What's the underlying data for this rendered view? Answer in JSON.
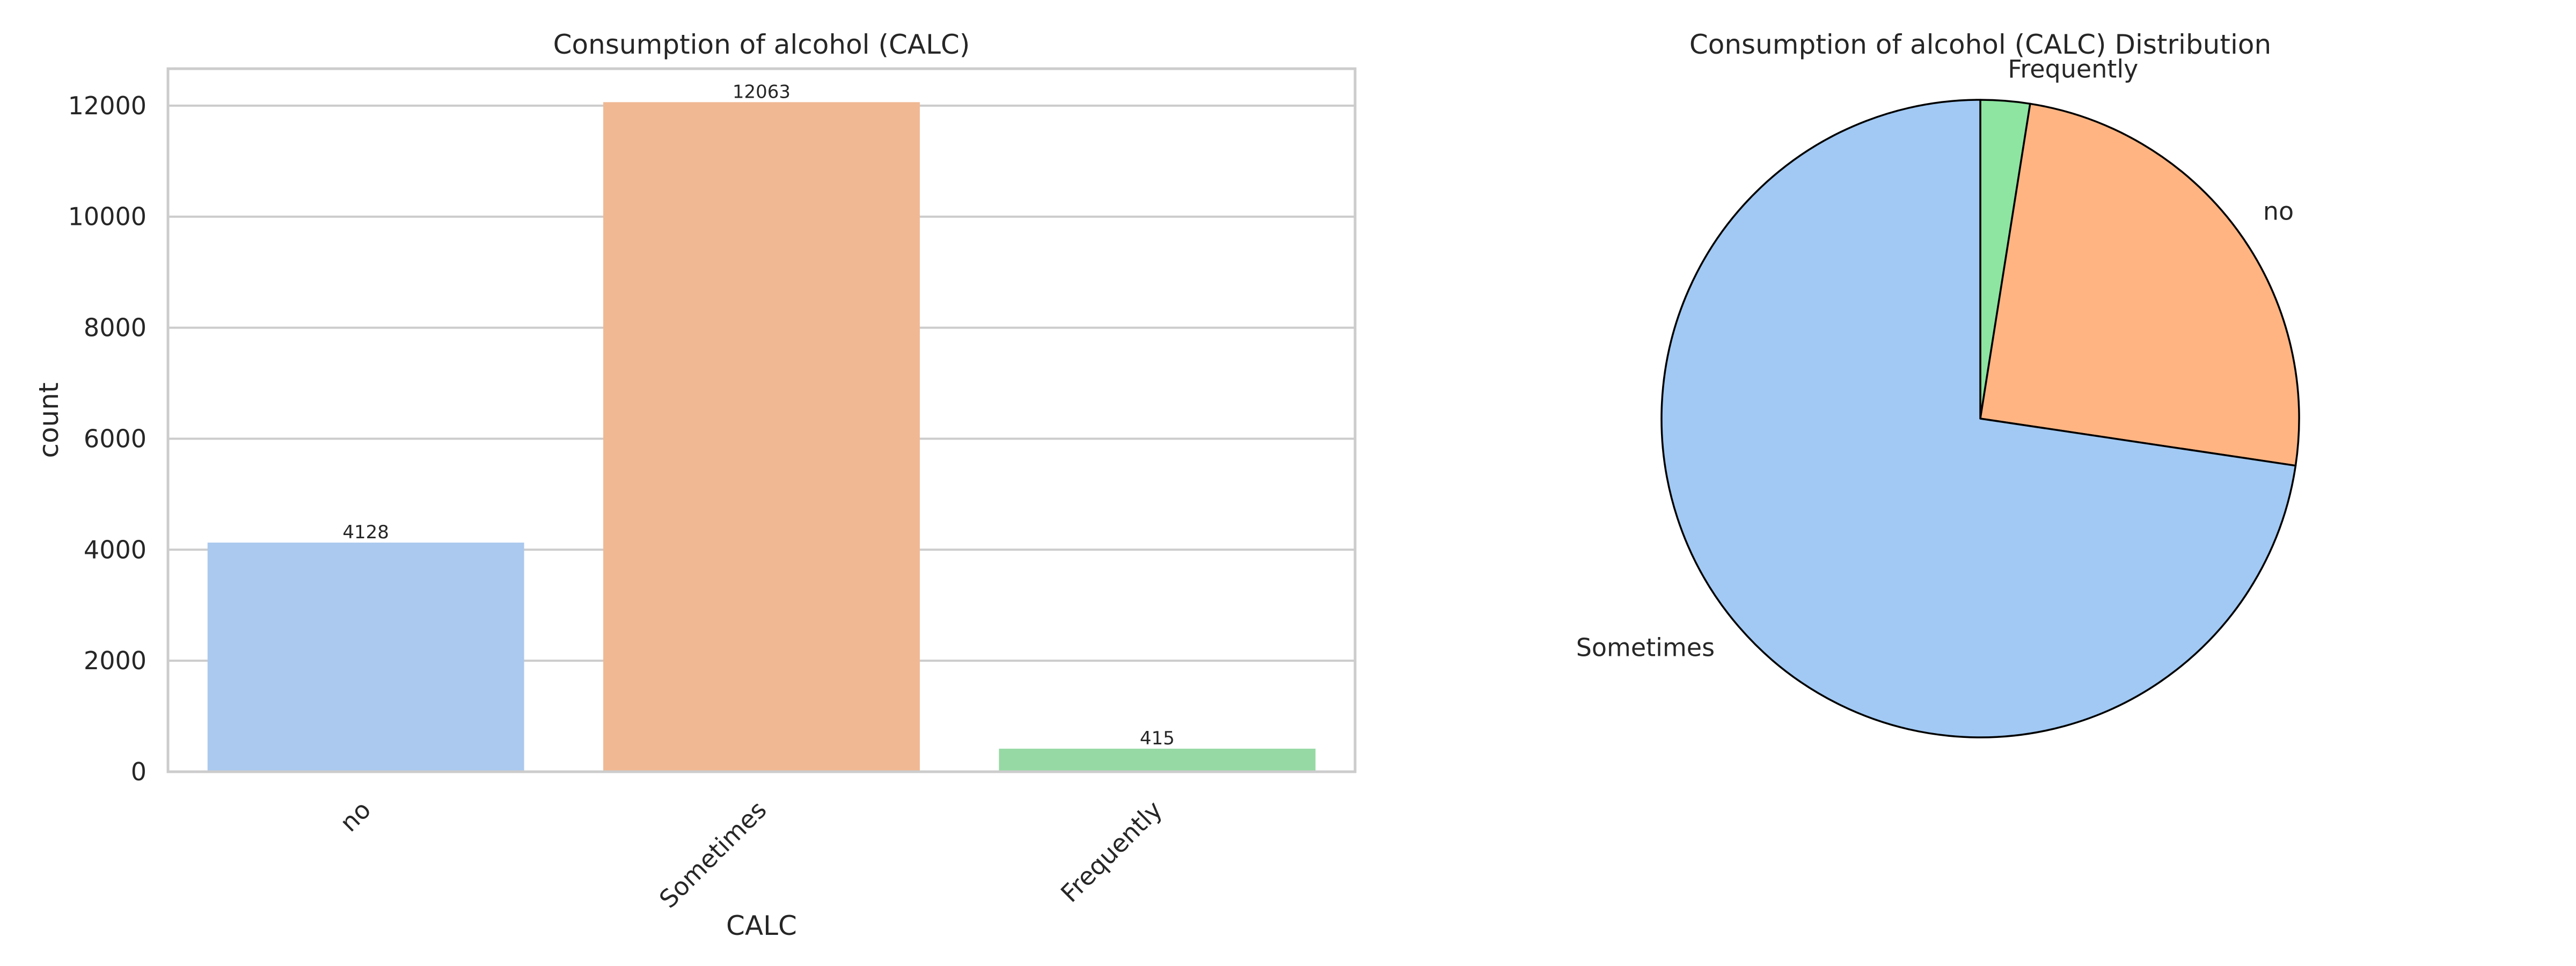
{
  "chart_data": [
    {
      "type": "bar",
      "title": "Consumption of alcohol (CALC)",
      "xlabel": "CALC",
      "ylabel": "count",
      "categories": [
        "no",
        "Sometimes",
        "Frequently"
      ],
      "values": [
        4128,
        12063,
        415
      ],
      "data_labels": [
        "4128",
        "12063",
        "415"
      ],
      "yticks": [
        0,
        2000,
        4000,
        6000,
        8000,
        10000,
        12000
      ],
      "ylim": [
        0,
        12666
      ],
      "grid": true,
      "colors": [
        "#abc9ee",
        "#f0b893",
        "#96d9a4"
      ]
    },
    {
      "type": "pie",
      "title": "Consumption of alcohol (CALC) Distribution",
      "labels": [
        "Frequently",
        "no",
        "Sometimes"
      ],
      "values": [
        415,
        4128,
        12063
      ],
      "colors": [
        "#8de5a1",
        "#ffb482",
        "#a1c9f4"
      ],
      "start_angle_deg": 90,
      "direction": "clockwise"
    }
  ]
}
